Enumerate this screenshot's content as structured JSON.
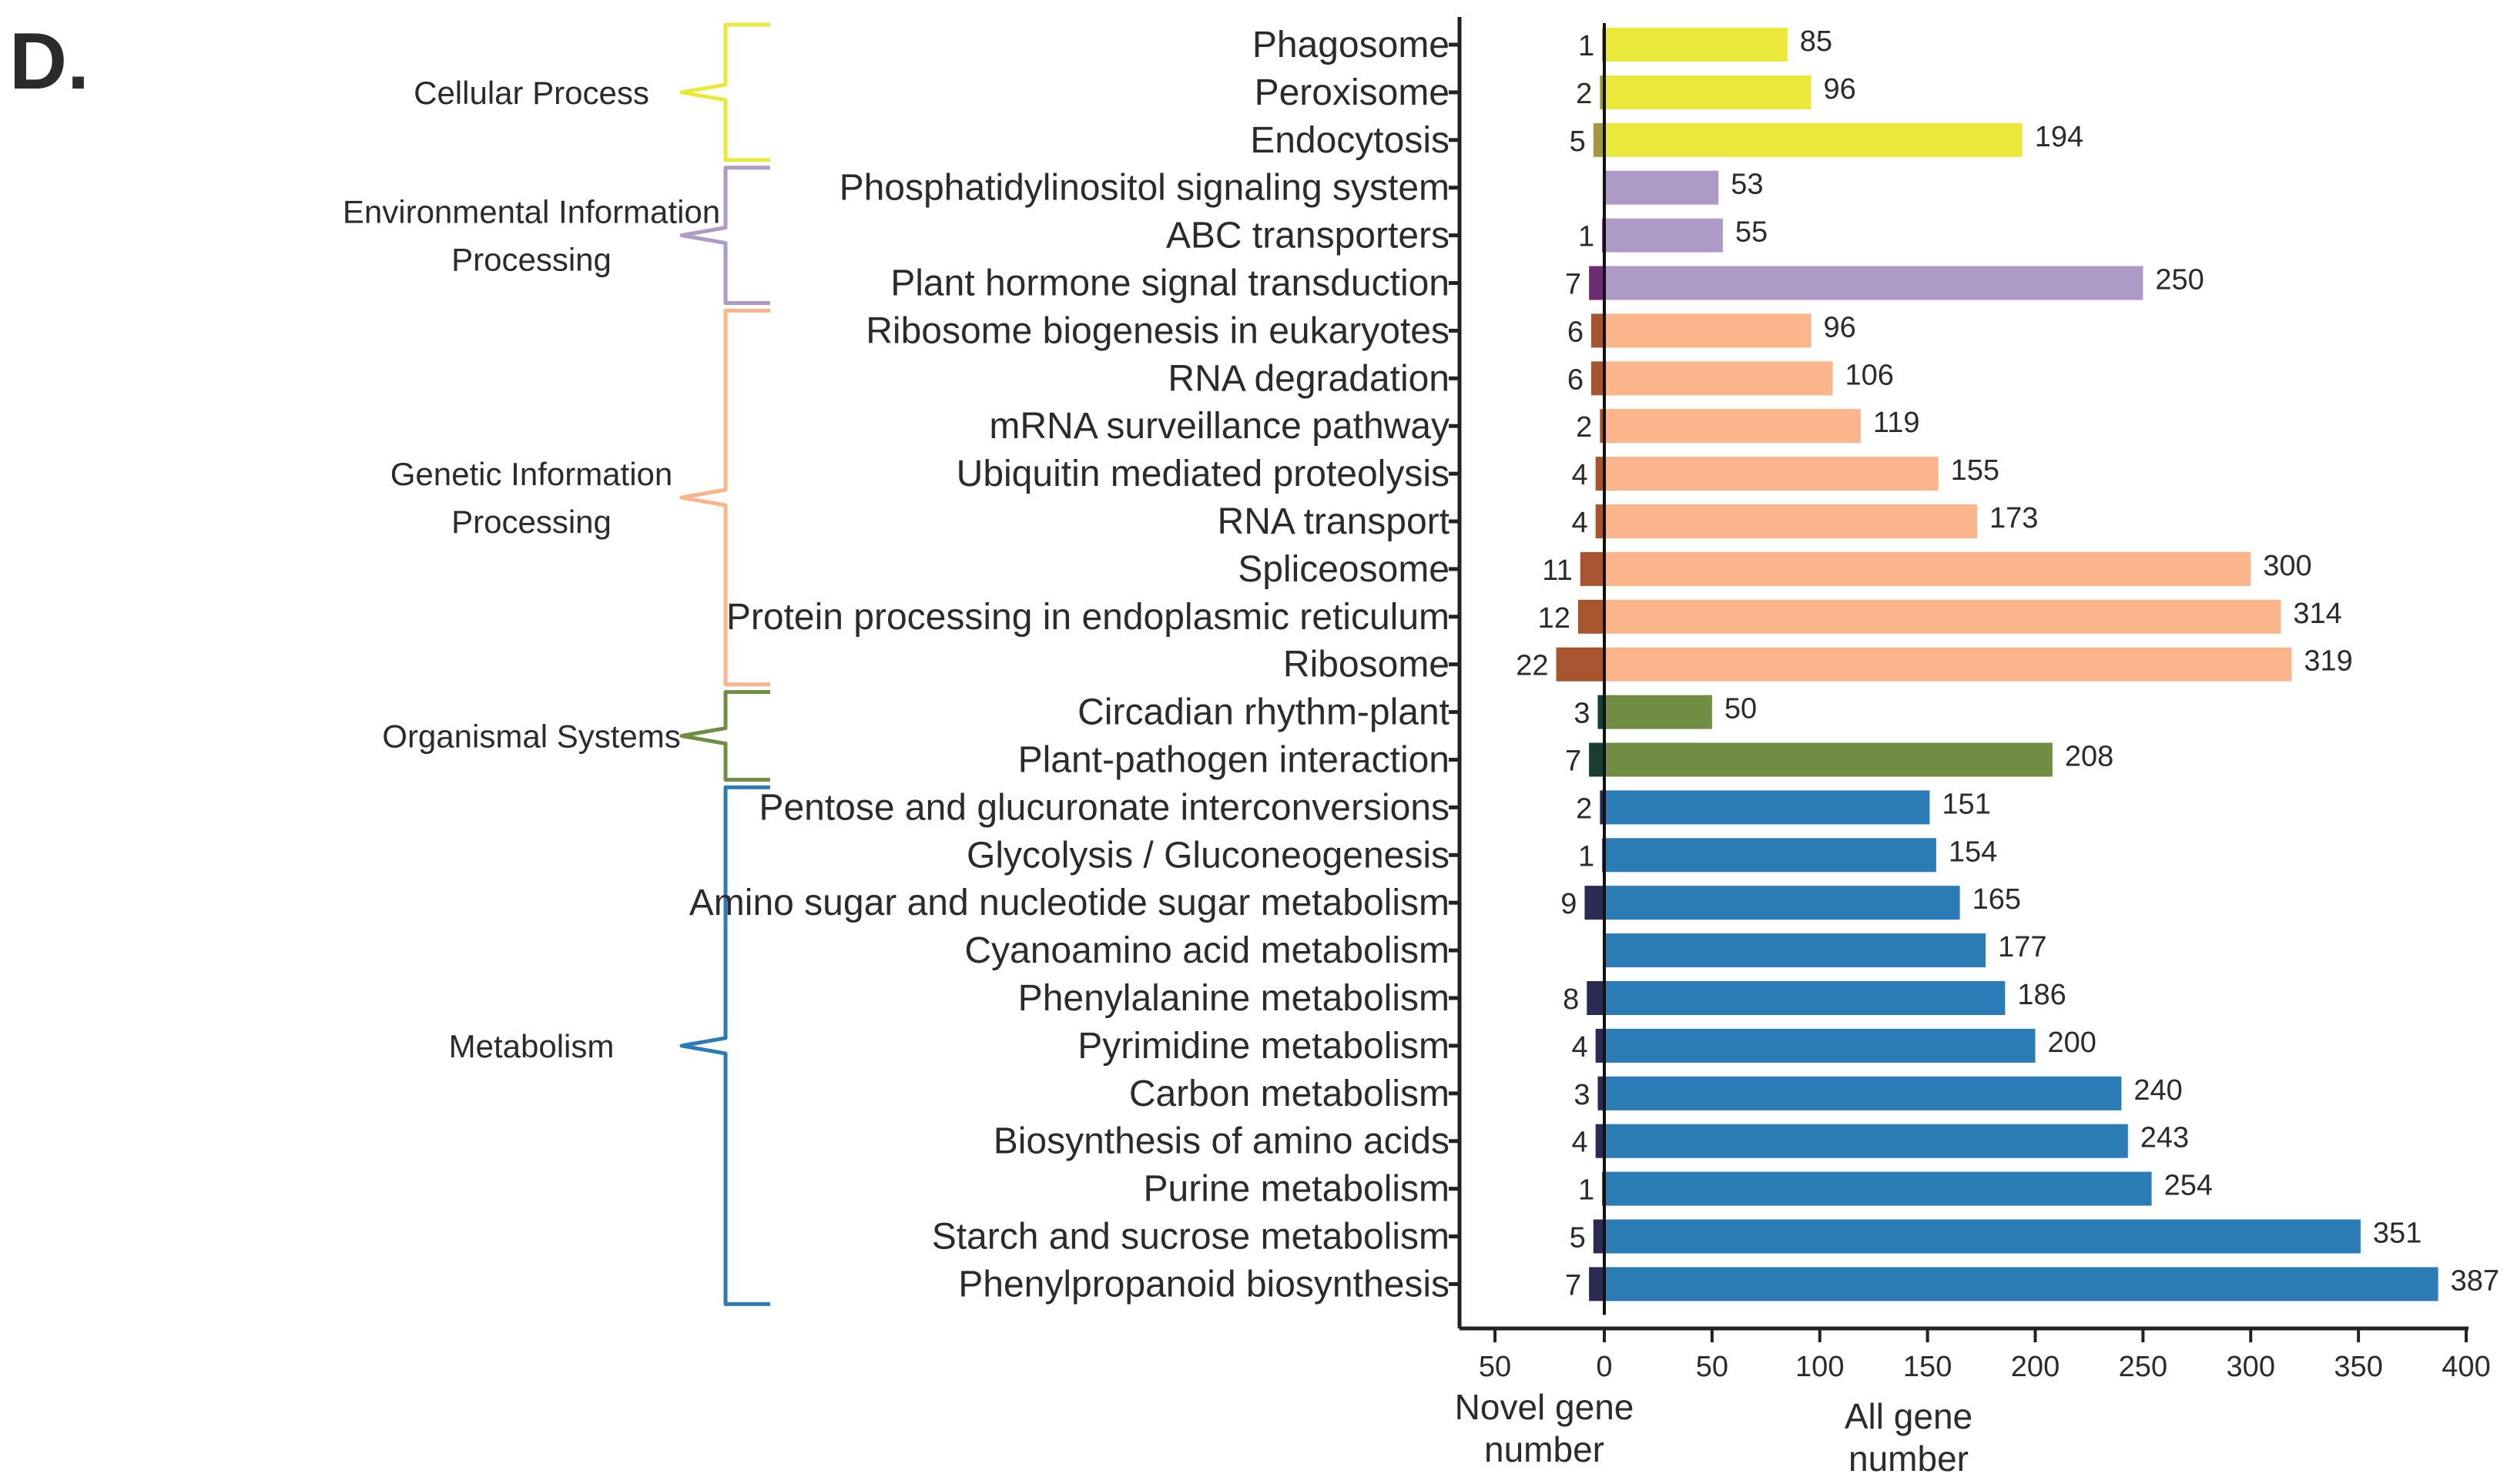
{
  "panel_label": "D.",
  "chart_data": {
    "type": "bar",
    "orientation": "horizontal-diverging",
    "title": "",
    "left_axis": {
      "label_lines": [
        "Novel gene",
        "number"
      ],
      "range": [
        0,
        50
      ],
      "ticks": [
        50,
        0
      ],
      "direction": "left"
    },
    "right_axis": {
      "label_lines": [
        "All gene",
        "number"
      ],
      "range": [
        0,
        400
      ],
      "ticks": [
        0,
        50,
        100,
        150,
        200,
        250,
        300,
        350,
        400
      ]
    },
    "groups": [
      {
        "name_lines": [
          "Cellular Process"
        ],
        "color_all": "#ebe83c",
        "color_novel": "#a09a3c",
        "pathways": [
          {
            "name": "Phagosome",
            "novel": 1,
            "all": 85
          },
          {
            "name": "Peroxisome",
            "novel": 2,
            "all": 96
          },
          {
            "name": "Endocytosis",
            "novel": 5,
            "all": 194
          }
        ]
      },
      {
        "name_lines": [
          "Environmental Information",
          "Processing"
        ],
        "color_all": "#ad9ac7",
        "color_novel": "#6e2a72",
        "pathways": [
          {
            "name": "Phosphatidylinositol signaling system",
            "novel": 0,
            "all": 53
          },
          {
            "name": "ABC transporters",
            "novel": 1,
            "all": 55
          },
          {
            "name": "Plant hormone signal transduction",
            "novel": 7,
            "all": 250
          }
        ]
      },
      {
        "name_lines": [
          "Genetic Information",
          "Processing"
        ],
        "color_all": "#fcb48a",
        "color_novel": "#a6552e",
        "pathways": [
          {
            "name": "Ribosome biogenesis in eukaryotes",
            "novel": 6,
            "all": 96
          },
          {
            "name": "RNA degradation",
            "novel": 6,
            "all": 106
          },
          {
            "name": "mRNA surveillance pathway",
            "novel": 2,
            "all": 119
          },
          {
            "name": "Ubiquitin mediated proteolysis",
            "novel": 4,
            "all": 155
          },
          {
            "name": "RNA transport",
            "novel": 4,
            "all": 173
          },
          {
            "name": "Spliceosome",
            "novel": 11,
            "all": 300
          },
          {
            "name": "Protein processing in endoplasmic reticulum",
            "novel": 12,
            "all": 314
          },
          {
            "name": "Ribosome",
            "novel": 22,
            "all": 319
          }
        ]
      },
      {
        "name_lines": [
          "Organismal Systems"
        ],
        "color_all": "#6f8e43",
        "color_novel": "#173f2e",
        "pathways": [
          {
            "name": "Circadian rhythm-plant",
            "novel": 3,
            "all": 50
          },
          {
            "name": "Plant-pathogen interaction",
            "novel": 7,
            "all": 208
          }
        ]
      },
      {
        "name_lines": [
          "Metabolism"
        ],
        "color_all": "#2b7bb6",
        "color_novel": "#2b2a52",
        "pathways": [
          {
            "name": "Pentose and glucuronate interconversions",
            "novel": 2,
            "all": 151
          },
          {
            "name": "Glycolysis / Gluconeogenesis",
            "novel": 1,
            "all": 154
          },
          {
            "name": "Amino sugar and nucleotide sugar metabolism",
            "novel": 9,
            "all": 165
          },
          {
            "name": "Cyanoamino acid metabolism",
            "novel": 0,
            "all": 177
          },
          {
            "name": "Phenylalanine metabolism",
            "novel": 8,
            "all": 186
          },
          {
            "name": "Pyrimidine metabolism",
            "novel": 4,
            "all": 200
          },
          {
            "name": "Carbon metabolism",
            "novel": 3,
            "all": 240
          },
          {
            "name": "Biosynthesis of amino acids",
            "novel": 4,
            "all": 243
          },
          {
            "name": "Purine metabolism",
            "novel": 1,
            "all": 254
          },
          {
            "name": "Starch and sucrose metabolism",
            "novel": 5,
            "all": 351
          },
          {
            "name": "Phenylpropanoid biosynthesis",
            "novel": 7,
            "all": 387
          }
        ]
      }
    ]
  }
}
